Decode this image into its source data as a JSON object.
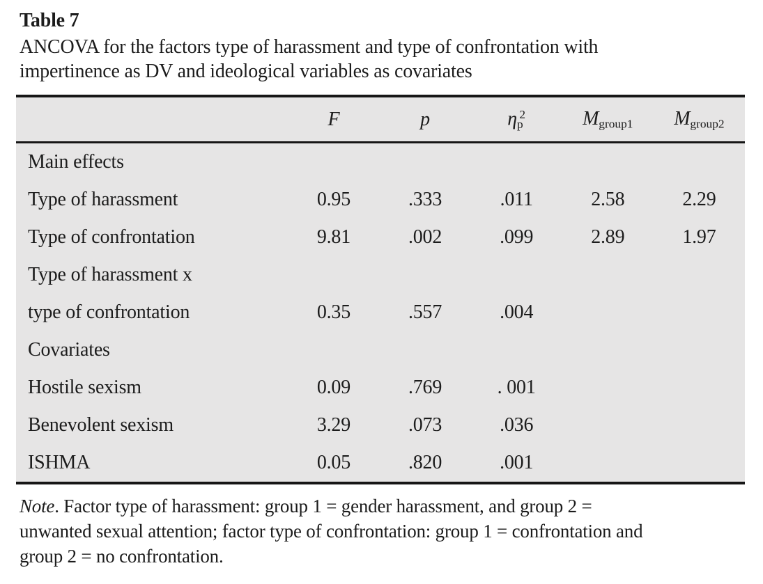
{
  "page": {
    "title": "Table 7",
    "caption_lines": [
      "ANCOVA for the factors type of harassment and type of confrontation with",
      "impertinence as DV and ideological variables as covariates"
    ]
  },
  "table": {
    "header": {
      "f": "F",
      "p": "p",
      "eta": {
        "base": "η",
        "sub": "p",
        "sup": "2"
      },
      "m1": {
        "base": "M",
        "sub": "group1"
      },
      "m2": {
        "base": "M",
        "sub": "group2"
      }
    },
    "rows": [
      {
        "label": "Main effects",
        "values": [
          "",
          "",
          "",
          "",
          ""
        ]
      },
      {
        "label": "Type of harassment",
        "values": [
          "0.95",
          ".333",
          ".011",
          "2.58",
          "2.29"
        ]
      },
      {
        "label": "Type of confrontation",
        "values": [
          "9.81",
          ".002",
          ".099",
          "2.89",
          "1.97"
        ]
      },
      {
        "label": "Type of harassment x",
        "values": [
          "",
          "",
          "",
          "",
          ""
        ]
      },
      {
        "label": "type of confrontation",
        "values": [
          "0.35",
          ".557",
          ".004",
          "",
          ""
        ]
      },
      {
        "label": "Covariates",
        "values": [
          "",
          "",
          "",
          "",
          ""
        ]
      },
      {
        "label": "Hostile sexism",
        "values": [
          "0.09",
          ".769",
          ". 001",
          "",
          ""
        ]
      },
      {
        "label": "Benevolent sexism",
        "values": [
          "3.29",
          ".073",
          ".036",
          "",
          ""
        ]
      },
      {
        "label": "ISHMA",
        "values": [
          "0.05",
          ".820",
          ".001",
          "",
          ""
        ]
      }
    ]
  },
  "note": {
    "prefix": "Note",
    "lines": [
      ". Factor type of harassment: group 1 = gender harassment, and group 2 =",
      "unwanted sexual attention; factor type of confrontation: group 1 = confrontation and",
      "group 2 = no confrontation."
    ]
  },
  "colors": {
    "table_background": "#e6e5e5",
    "rule": "#161616",
    "text": "#1c1c1c",
    "page_background": "#ffffff"
  },
  "chart_data": {
    "type": "table",
    "title": "Table 7. ANCOVA for the factors type of harassment and type of confrontation with impertinence as DV and ideological variables as covariates",
    "columns": [
      "",
      "F",
      "p",
      "ηp2",
      "Mgroup1",
      "Mgroup2"
    ],
    "rows": [
      [
        "Main effects",
        null,
        null,
        null,
        null,
        null
      ],
      [
        "Type of harassment",
        0.95,
        0.333,
        0.011,
        2.58,
        2.29
      ],
      [
        "Type of confrontation",
        9.81,
        0.002,
        0.099,
        2.89,
        1.97
      ],
      [
        "Type of harassment x type of confrontation",
        0.35,
        0.557,
        0.004,
        null,
        null
      ],
      [
        "Covariates",
        null,
        null,
        null,
        null,
        null
      ],
      [
        "Hostile sexism",
        0.09,
        0.769,
        0.001,
        null,
        null
      ],
      [
        "Benevolent sexism",
        3.29,
        0.073,
        0.036,
        null,
        null
      ],
      [
        "ISHMA",
        0.05,
        0.82,
        0.001,
        null,
        null
      ]
    ]
  }
}
